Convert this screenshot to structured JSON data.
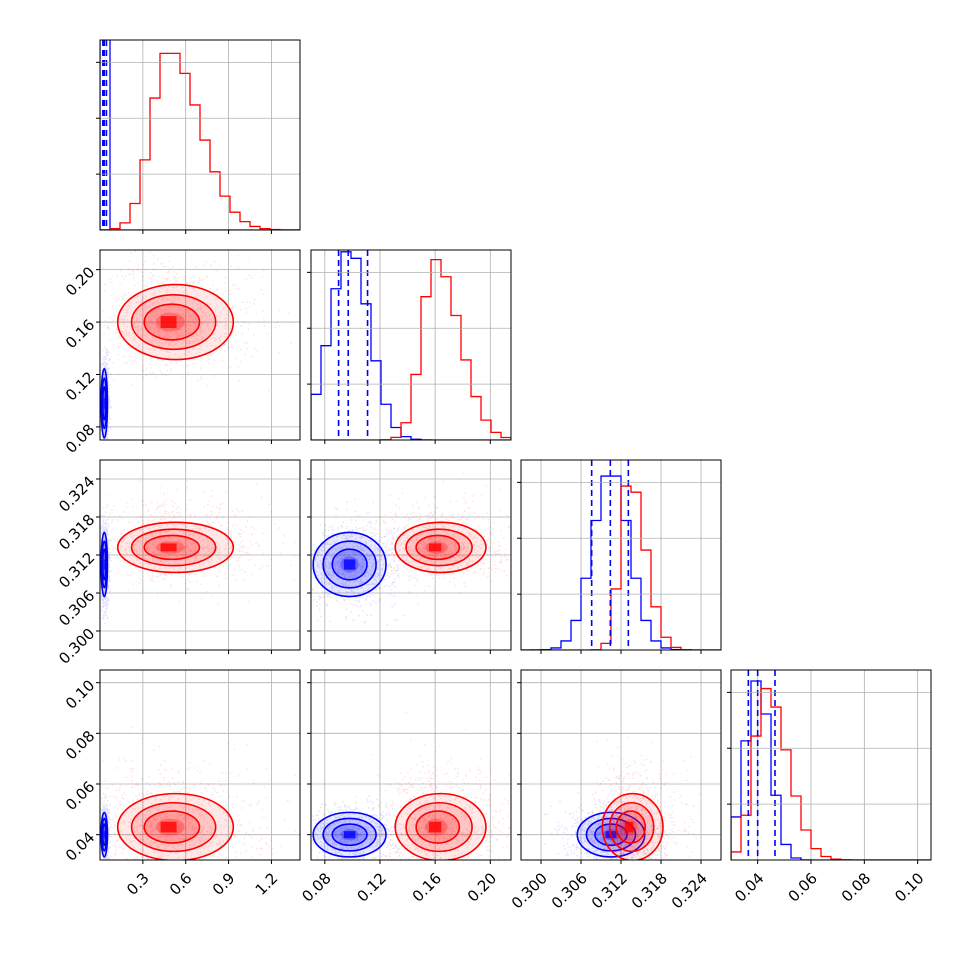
{
  "chart_data": {
    "type": "corner",
    "colors": {
      "blue": "#0000ff",
      "red": "#ff0000"
    },
    "params": [
      {
        "range": [
          0.0,
          1.4
        ],
        "ticks": [
          0.3,
          0.6,
          0.9,
          1.2
        ],
        "tick_labels": [
          "0.3",
          "0.6",
          "0.9",
          "1.2"
        ]
      },
      {
        "range": [
          0.07,
          0.215
        ],
        "ticks": [
          0.08,
          0.12,
          0.16,
          0.2
        ],
        "tick_labels": [
          "0.08",
          "0.12",
          "0.16",
          "0.20"
        ]
      },
      {
        "range": [
          0.297,
          0.327
        ],
        "ticks": [
          0.3,
          0.306,
          0.312,
          0.318,
          0.324
        ],
        "tick_labels": [
          "0.300",
          "0.306",
          "0.312",
          "0.318",
          "0.324"
        ]
      },
      {
        "range": [
          0.03,
          0.105
        ],
        "ticks": [
          0.04,
          0.06,
          0.08,
          0.1
        ],
        "tick_labels": [
          "0.04",
          "0.06",
          "0.08",
          "0.10"
        ]
      }
    ],
    "blue": {
      "mean": [
        0.03,
        0.098,
        0.3105,
        0.04
      ],
      "std": [
        0.01,
        0.012,
        0.0023,
        0.004
      ],
      "hist_ymax": [
        1.6,
        1.06,
        1.0,
        1.0
      ],
      "quantiles": [
        [
          0.02,
          0.03,
          0.045
        ],
        [
          0.09,
          0.097,
          0.111
        ],
        [
          0.3076,
          0.3104,
          0.3131
        ],
        [
          0.0365,
          0.04,
          0.0465
        ]
      ]
    },
    "red": {
      "mean": [
        0.48,
        0.16,
        0.3132,
        0.043
      ],
      "std": [
        0.16,
        0.013,
        0.0018,
        0.006
      ],
      "hist_ymax": [
        1.0,
        1.0,
        0.96,
        0.95
      ]
    },
    "grid": true,
    "histogram_style": "step",
    "quantile_line_style": "dashed"
  }
}
